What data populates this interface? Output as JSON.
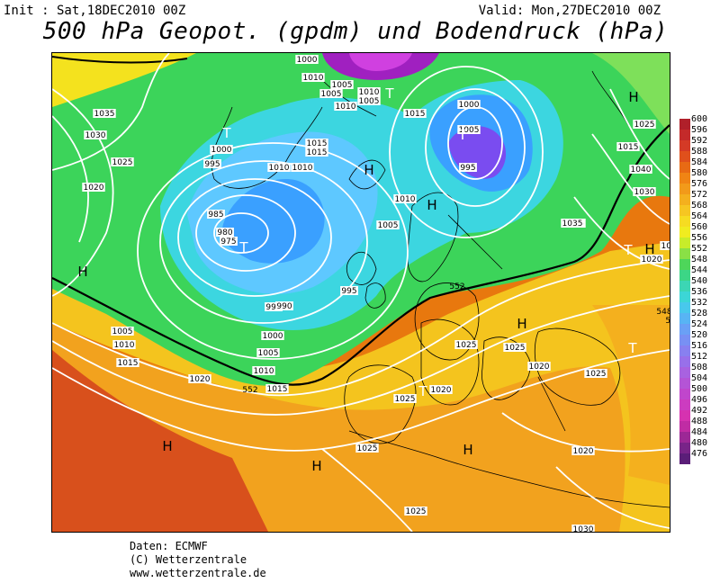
{
  "header": {
    "init": "Init : Sat,18DEC2010 00Z",
    "valid": "Valid: Mon,27DEC2010 00Z",
    "title": "500 hPa Geopot. (gpdm) und Bodendruck (hPa)"
  },
  "map": {
    "fill_colors": {
      "deep_purple": "#a020c0",
      "blue": "#3aa0ff",
      "light_blue": "#5ec8ff",
      "cyan": "#3cd6e0",
      "green": "#3cd45a",
      "light_green": "#7ee05a",
      "yellow": "#f4e21e",
      "orange": "#f2a21e",
      "dark_orange": "#e8780e",
      "red_orange": "#d8501c"
    },
    "isobar_labels": [
      "1000",
      "1010",
      "1005",
      "1010",
      "1005",
      "1010",
      "1015",
      "1000",
      "1005",
      "995",
      "1035",
      "1030",
      "1025",
      "1020",
      "1005",
      "1000",
      "995",
      "1010",
      "1010",
      "1015",
      "1015",
      "990",
      "985",
      "980",
      "975",
      "1010",
      "1005",
      "995",
      "990",
      "1000",
      "1005",
      "1010",
      "1015",
      "1020",
      "1005",
      "1010",
      "1015",
      "1025",
      "1020",
      "1025",
      "1025",
      "1020",
      "1025",
      "1025",
      "1025",
      "1020",
      "1025",
      "1025",
      "1015",
      "1040",
      "1035",
      "1030",
      "1020",
      "1025",
      "1030",
      "1025",
      "1000"
    ],
    "pressure_centers": [
      {
        "type": "H"
      },
      {
        "type": "H"
      },
      {
        "type": "H"
      },
      {
        "type": "H"
      },
      {
        "type": "H"
      },
      {
        "type": "H"
      },
      {
        "type": "H"
      },
      {
        "type": "H"
      },
      {
        "type": "H"
      },
      {
        "type": "T"
      },
      {
        "type": "T"
      },
      {
        "type": "T"
      },
      {
        "type": "T"
      },
      {
        "type": "T"
      },
      {
        "type": "T"
      },
      {
        "type": "T"
      }
    ],
    "geopotential_labels": [
      "552",
      "552",
      "548",
      "552"
    ]
  },
  "colorbar": {
    "labels": [
      "600",
      "596",
      "592",
      "588",
      "584",
      "580",
      "576",
      "572",
      "568",
      "564",
      "560",
      "556",
      "552",
      "548",
      "544",
      "540",
      "536",
      "532",
      "528",
      "524",
      "520",
      "516",
      "512",
      "508",
      "504",
      "500",
      "496",
      "492",
      "488",
      "484",
      "480",
      "476"
    ],
    "colors": [
      "#b0202a",
      "#c42a2a",
      "#d43a26",
      "#e0501c",
      "#e86a14",
      "#f08414",
      "#f29a1a",
      "#f4b01e",
      "#f6c622",
      "#f6dc22",
      "#f0ec20",
      "#c8ec2a",
      "#8ae046",
      "#4ed65a",
      "#3cd686",
      "#3cd6b4",
      "#3cd6d6",
      "#48c8ec",
      "#58b4f4",
      "#6aa0f6",
      "#7890f4",
      "#8880f0",
      "#9870ea",
      "#a862e0",
      "#b454d6",
      "#c046cc",
      "#cc3cc0",
      "#d632b0",
      "#c02ca4",
      "#9c2896",
      "#782488",
      "#5a1e78"
    ]
  },
  "credits": {
    "line1": "Daten: ECMWF",
    "line2": "(C) Wetterzentrale",
    "line3": "www.wetterzentrale.de"
  }
}
